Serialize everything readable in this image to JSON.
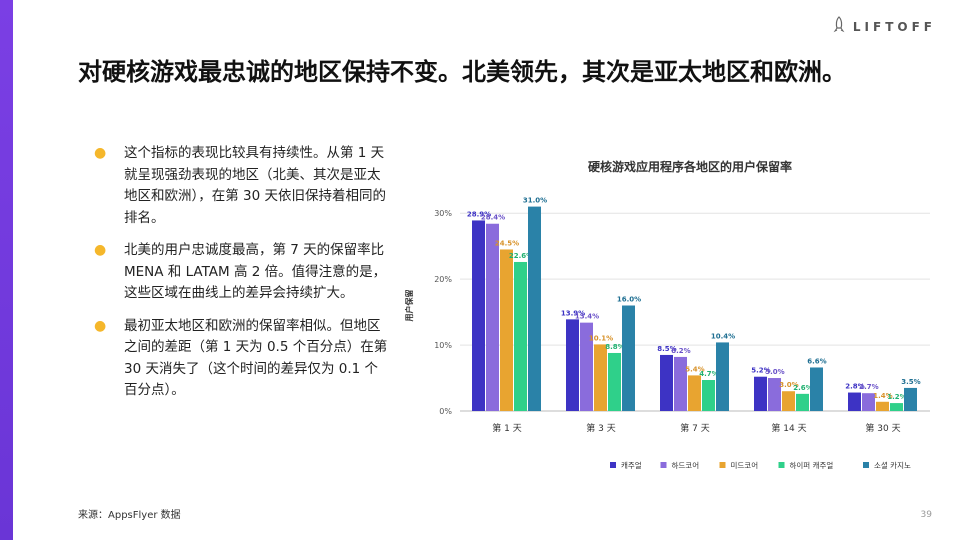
{
  "brand": {
    "name": "LIFTOFF",
    "accent": "#7b3fe4",
    "icon": "rocket-icon"
  },
  "title": "对硬核游戏最忠诚的地区保持不变。北美领先，其次是亚太地区和欧洲。",
  "bullets": [
    "这个指标的表现比较具有持续性。从第 1 天就呈现强劲表现的地区（北美、其次是亚太地区和欧洲），在第 30 天依旧保持着相同的排名。",
    "北美的用户忠诚度最高，第 7 天的保留率比 MENA 和 LATAM 高 2 倍。值得注意的是，这些区域在曲线上的差异会持续扩大。",
    "最初亚太地区和欧洲的保留率相似。但地区之间的差距（第 1 天为 0.5 个百分点）在第 30 天消失了（这个时间的差异仅为 0.1 个百分点）。"
  ],
  "bullet_marker": "●",
  "footer": {
    "source": "来源：AppsFlyer 数据",
    "page": "39"
  },
  "chart_data": {
    "type": "bar",
    "title": "硬核游戏应用程序各地区的用户保留率",
    "ylabel": "用户保留",
    "xlabel": "",
    "ylim": [
      0,
      32
    ],
    "yticks": [
      0,
      10,
      20,
      30
    ],
    "ytick_labels": [
      "0%",
      "10%",
      "20%",
      "30%"
    ],
    "grid": true,
    "legend_position": "bottom",
    "categories": [
      "第 1 天",
      "第 3 天",
      "第 7 天",
      "第 14 天",
      "第 30 天"
    ],
    "series": [
      {
        "name": "캐주얼",
        "color": "#3d33c4",
        "label_color": "#3d33c4",
        "values": [
          28.9,
          13.9,
          8.5,
          5.2,
          2.8
        ]
      },
      {
        "name": "하드코어",
        "color": "#8a6cdc",
        "label_color": "#6a52c8",
        "values": [
          28.4,
          13.4,
          8.2,
          5.0,
          2.7
        ]
      },
      {
        "name": "미드코어",
        "color": "#e8a430",
        "label_color": "#d8922a",
        "values": [
          24.5,
          10.1,
          5.4,
          3.0,
          1.4
        ]
      },
      {
        "name": "하이퍼 캐주얼",
        "color": "#2fd08a",
        "label_color": "#1fb070",
        "values": [
          22.6,
          8.8,
          4.7,
          2.6,
          1.2
        ]
      },
      {
        "name": "소셜 카지노",
        "color": "#2a82a8",
        "label_color": "#1f6f92",
        "values": [
          31.0,
          16.0,
          10.4,
          6.6,
          3.5
        ]
      }
    ]
  }
}
